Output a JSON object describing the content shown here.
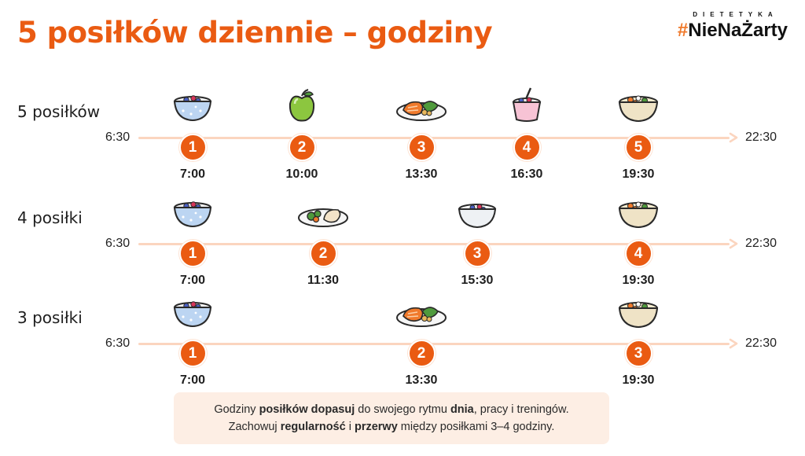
{
  "title": "5 posiłków dziennie – godziny",
  "brand": {
    "small": "DIETETYKA",
    "hash": "#",
    "name": "NieNaŻarty"
  },
  "range": {
    "start": "6:30",
    "end": "22:30"
  },
  "colors": {
    "accent": "#ea5b12",
    "line": "#fbd5bf",
    "note_bg": "#fdeee4"
  },
  "rows": [
    {
      "label": "5 posiłków",
      "meals": [
        {
          "num": "1",
          "time": "7:00",
          "icon": "porridge-bowl-icon"
        },
        {
          "num": "2",
          "time": "10:00",
          "icon": "apple-icon"
        },
        {
          "num": "3",
          "time": "13:30",
          "icon": "salmon-plate-icon"
        },
        {
          "num": "4",
          "time": "16:30",
          "icon": "yogurt-cup-icon"
        },
        {
          "num": "5",
          "time": "19:30",
          "icon": "rice-bowl-icon"
        }
      ]
    },
    {
      "label": "4 posiłki",
      "meals": [
        {
          "num": "1",
          "time": "7:00",
          "icon": "porridge-bowl-icon"
        },
        {
          "num": "2",
          "time": "11:30",
          "icon": "chicken-plate-icon"
        },
        {
          "num": "3",
          "time": "15:30",
          "icon": "yogurt-bowl-icon"
        },
        {
          "num": "4",
          "time": "19:30",
          "icon": "rice-bowl-icon"
        }
      ]
    },
    {
      "label": "3 posiłki",
      "meals": [
        {
          "num": "1",
          "time": "7:00",
          "icon": "porridge-bowl-icon"
        },
        {
          "num": "2",
          "time": "13:30",
          "icon": "salmon-plate-icon"
        },
        {
          "num": "3",
          "time": "19:30",
          "icon": "rice-bowl-icon"
        }
      ]
    }
  ],
  "note": {
    "line1": [
      {
        "t": "Godziny ",
        "b": false
      },
      {
        "t": "posiłków",
        "b": true
      },
      {
        "t": " ",
        "b": false
      },
      {
        "t": "dopasuj",
        "b": true
      },
      {
        "t": " do swojego rytmu ",
        "b": false
      },
      {
        "t": "dnia",
        "b": true
      },
      {
        "t": ", pracy i treningów.",
        "b": false
      }
    ],
    "line2": [
      {
        "t": "Zachowuj ",
        "b": false
      },
      {
        "t": "regularność",
        "b": true
      },
      {
        "t": " i ",
        "b": false
      },
      {
        "t": "przerwy",
        "b": true
      },
      {
        "t": " między posiłkami 3–4 godziny.",
        "b": false
      }
    ]
  }
}
